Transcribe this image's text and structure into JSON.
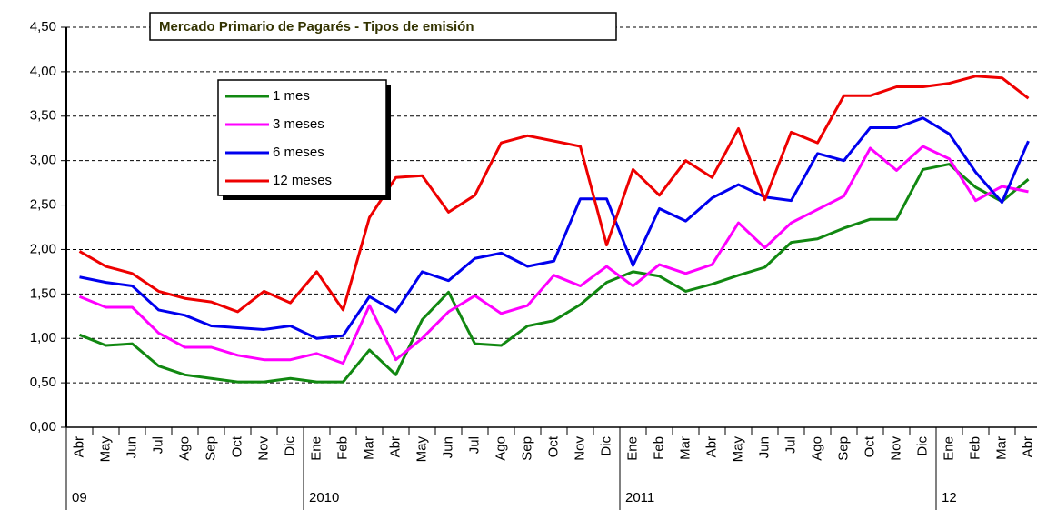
{
  "chart_data": {
    "type": "line",
    "title": "Mercado Primario de Pagarés  - Tipos de emisión",
    "categories": [
      "Abr",
      "May",
      "Jun",
      "Jul",
      "Ago",
      "Sep",
      "Oct",
      "Nov",
      "Dic",
      "Ene",
      "Feb",
      "Mar",
      "Abr",
      "May",
      "Jun",
      "Jul",
      "Ago",
      "Sep",
      "Oct",
      "Nov",
      "Dic",
      "Ene",
      "Feb",
      "Mar",
      "Abr",
      "May",
      "Jun",
      "Jul",
      "Ago",
      "Sep",
      "Oct",
      "Nov",
      "Dic",
      "Ene",
      "Feb",
      "Mar",
      "Abr"
    ],
    "x_groups": [
      {
        "label": "09",
        "months": 9
      },
      {
        "label": "2010",
        "months": 12
      },
      {
        "label": "2011",
        "months": 12
      },
      {
        "label": "12",
        "months": 4
      }
    ],
    "series": [
      {
        "name": "1 mes",
        "color": "#118811",
        "values": [
          1.04,
          0.92,
          0.94,
          0.69,
          0.59,
          0.55,
          0.51,
          0.51,
          0.55,
          0.51,
          0.51,
          0.87,
          0.59,
          1.21,
          1.52,
          0.94,
          0.92,
          1.14,
          1.2,
          1.38,
          1.63,
          1.75,
          1.7,
          1.53,
          1.61,
          1.71,
          1.8,
          2.08,
          2.12,
          2.24,
          2.34,
          2.34,
          2.9,
          2.96,
          2.7,
          2.54,
          2.79
        ]
      },
      {
        "name": "3 meses",
        "color": "#ff00ff",
        "values": [
          1.47,
          1.35,
          1.35,
          1.06,
          0.9,
          0.9,
          0.81,
          0.76,
          0.76,
          0.83,
          0.72,
          1.37,
          0.76,
          1.0,
          1.3,
          1.48,
          1.28,
          1.37,
          1.71,
          1.59,
          1.81,
          1.59,
          1.83,
          1.73,
          1.83,
          2.3,
          2.02,
          2.3,
          2.45,
          2.6,
          3.14,
          2.89,
          3.16,
          3.02,
          2.55,
          2.71,
          2.65
        ]
      },
      {
        "name": "6 meses",
        "color": "#0000ee",
        "values": [
          1.69,
          1.63,
          1.59,
          1.32,
          1.26,
          1.14,
          1.12,
          1.1,
          1.14,
          1.0,
          1.03,
          1.47,
          1.3,
          1.75,
          1.65,
          1.9,
          1.96,
          1.81,
          1.87,
          2.57,
          2.57,
          1.82,
          2.46,
          2.32,
          2.58,
          2.73,
          2.59,
          2.55,
          3.08,
          3.0,
          3.37,
          3.37,
          3.48,
          3.3,
          2.87,
          2.53,
          3.22
        ]
      },
      {
        "name": "12 meses",
        "color": "#ee0000",
        "values": [
          1.98,
          1.81,
          1.73,
          1.53,
          1.45,
          1.41,
          1.3,
          1.53,
          1.4,
          1.75,
          1.32,
          2.36,
          2.81,
          2.83,
          2.42,
          2.61,
          3.2,
          3.28,
          3.22,
          3.16,
          2.05,
          2.9,
          2.61,
          3.0,
          2.81,
          3.36,
          2.56,
          3.32,
          3.2,
          3.73,
          3.73,
          3.83,
          3.83,
          3.87,
          3.95,
          3.93,
          3.7
        ]
      }
    ],
    "ylim": [
      0,
      4.5
    ],
    "yticks": [
      {
        "value": 0,
        "label": "0,00"
      },
      {
        "value": 0.5,
        "label": "0,50"
      },
      {
        "value": 1,
        "label": "1,00"
      },
      {
        "value": 1.5,
        "label": "1,50"
      },
      {
        "value": 2,
        "label": "2,00"
      },
      {
        "value": 2.5,
        "label": "2,50"
      },
      {
        "value": 3,
        "label": "3,00"
      },
      {
        "value": 3.5,
        "label": "3,50"
      },
      {
        "value": 4,
        "label": "4,00"
      },
      {
        "value": 4.5,
        "label": "4,50"
      }
    ],
    "grid": true
  }
}
